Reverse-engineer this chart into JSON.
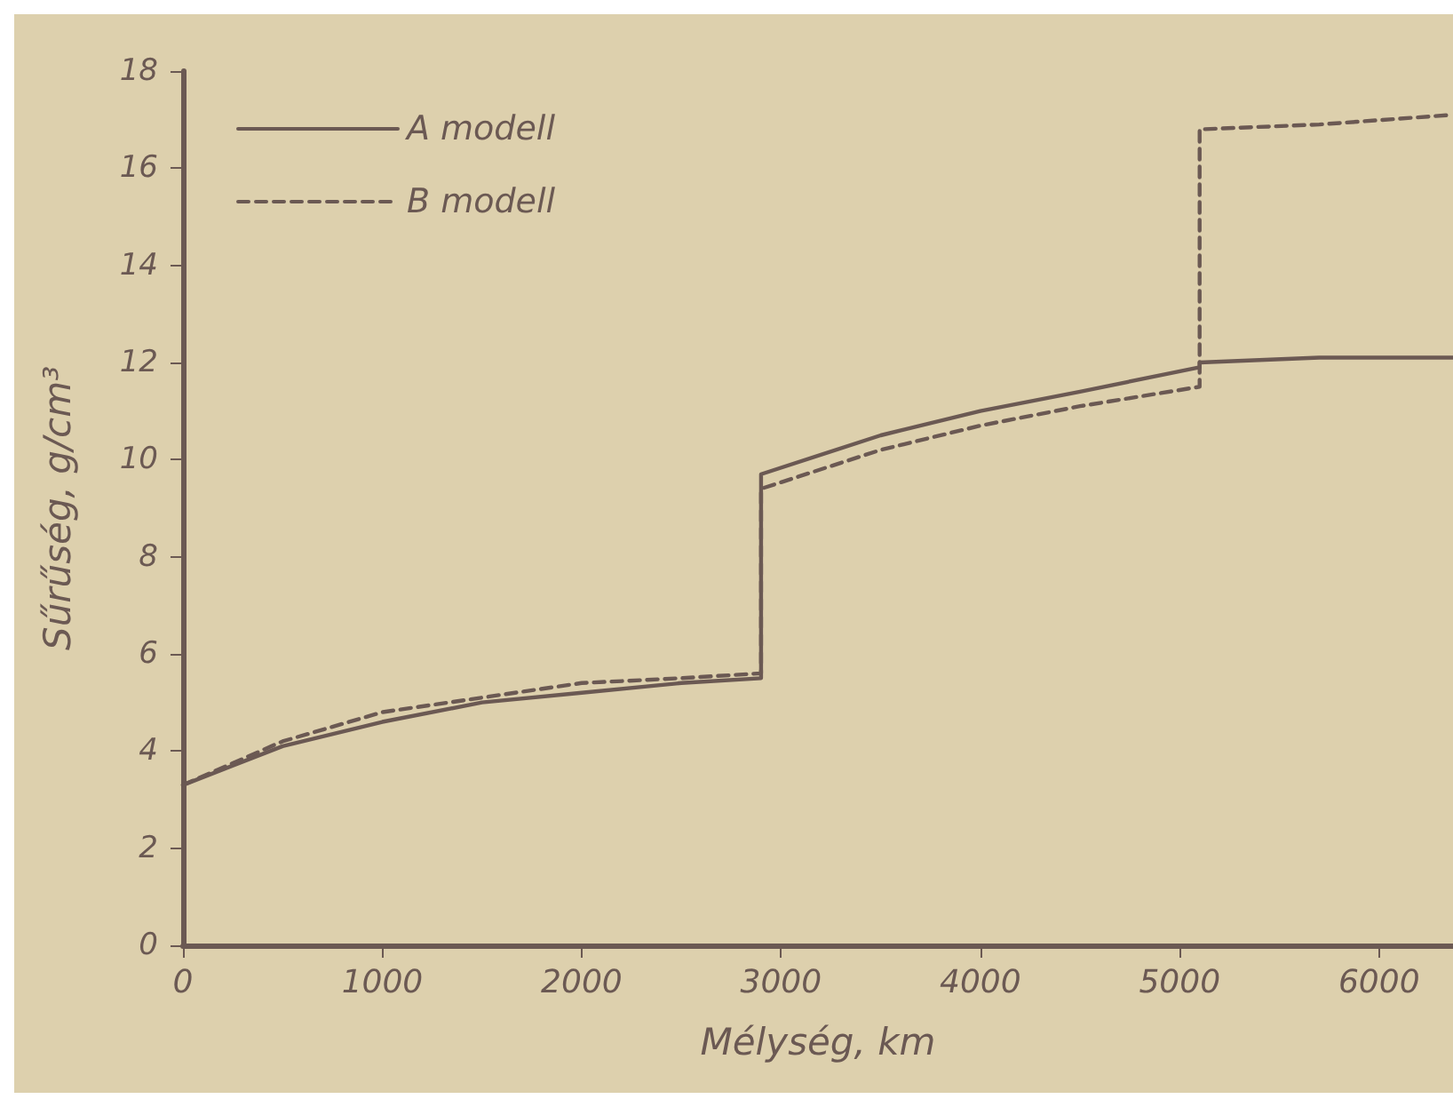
{
  "chart_data": {
    "type": "line",
    "xlabel": "Mélység, km",
    "ylabel": "Sűrűség, g/cm³",
    "xlim": [
      0,
      6371
    ],
    "xticks": [
      0,
      1000,
      2000,
      3000,
      4000,
      5000,
      6000
    ],
    "ylim": [
      0,
      18
    ],
    "yticks": [
      0,
      2,
      4,
      6,
      8,
      10,
      12,
      14,
      16,
      18
    ],
    "grid": false,
    "legend": "top left",
    "marker": "none",
    "series": [
      {
        "name": "A modell",
        "color": "#6b5953",
        "line_style": "solid",
        "x": [
          0,
          500,
          1000,
          1500,
          2000,
          2500,
          2900,
          2900,
          3500,
          4000,
          4500,
          5100,
          5100,
          5700,
          6371
        ],
        "values": [
          3.3,
          4.1,
          4.6,
          5.0,
          5.2,
          5.4,
          5.5,
          9.7,
          10.5,
          11.0,
          11.4,
          11.9,
          12.0,
          12.1,
          12.1
        ]
      },
      {
        "name": "B modell",
        "color": "#6b5953",
        "line_style": "dashed",
        "x": [
          0,
          500,
          1000,
          1500,
          2000,
          2500,
          2900,
          2900,
          3500,
          4000,
          4500,
          5100,
          5100,
          5700,
          6371
        ],
        "values": [
          3.3,
          4.2,
          4.8,
          5.1,
          5.4,
          5.5,
          5.6,
          9.4,
          10.2,
          10.7,
          11.1,
          11.5,
          16.8,
          16.9,
          17.1
        ]
      }
    ]
  }
}
